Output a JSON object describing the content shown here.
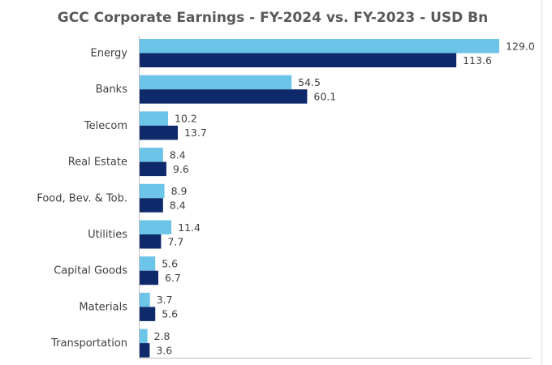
{
  "chart_data": {
    "type": "bar",
    "orientation": "horizontal",
    "title": "GCC Corporate Earnings - FY-2024 vs. FY-2023 - USD Bn",
    "categories": [
      "Energy",
      "Banks",
      "Telecom",
      "Real Estate",
      "Food, Bev. & Tob.",
      "Utilities",
      "Capital Goods",
      "Materials",
      "Transportation"
    ],
    "series": [
      {
        "values": [
          129.0,
          54.5,
          10.2,
          8.4,
          8.9,
          11.4,
          5.6,
          3.7,
          2.8
        ],
        "color": "#6cc4e8"
      },
      {
        "values": [
          113.6,
          60.1,
          13.7,
          9.6,
          8.4,
          7.7,
          6.7,
          5.6,
          3.6
        ],
        "color": "#0f2a6b"
      }
    ],
    "value_labels": [
      [
        "129.0",
        "54.5",
        "10.2",
        "8.4",
        "8.9",
        "11.4",
        "5.6",
        "3.7",
        "2.8"
      ],
      [
        "113.6",
        "60.1",
        "13.7",
        "9.6",
        "8.4",
        "7.7",
        "6.7",
        "5.6",
        "3.6"
      ]
    ],
    "xlim": [
      0,
      129.0
    ],
    "grid": false,
    "legend": "none"
  }
}
